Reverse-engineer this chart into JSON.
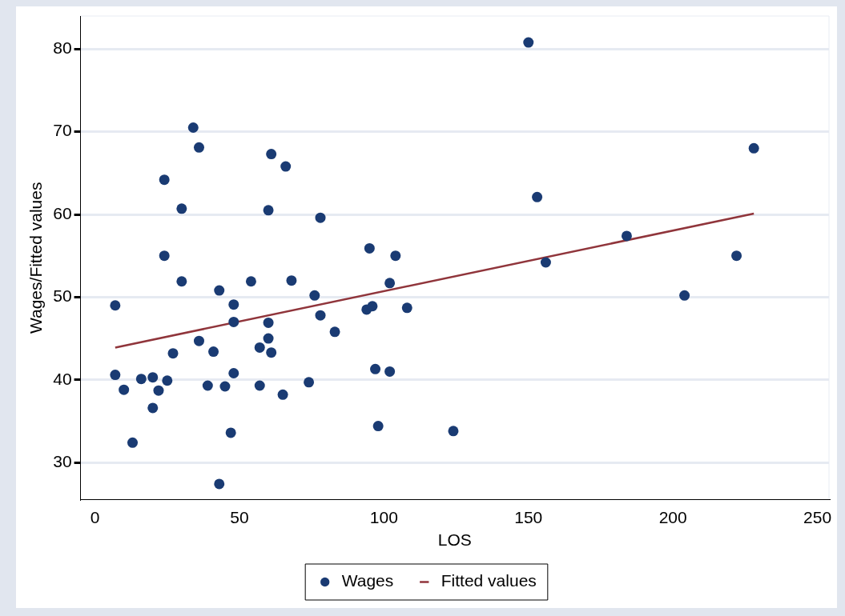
{
  "chart_data": {
    "type": "scatter",
    "xlabel": "LOS",
    "ylabel": "Wages/Fitted values",
    "xlim": [
      -5,
      254
    ],
    "ylim": [
      25.5,
      84
    ],
    "xticks": [
      0,
      50,
      100,
      150,
      200,
      250
    ],
    "yticks": [
      30,
      40,
      50,
      60,
      70,
      80
    ],
    "grid": "y",
    "legend": "bottom",
    "series": [
      {
        "name": "Wages",
        "marker": "circle",
        "color": "#1a3b73",
        "x": [
          7,
          34,
          36,
          24,
          30,
          61,
          66,
          60,
          78,
          24,
          30,
          43,
          54,
          68,
          76,
          48,
          48,
          60,
          78,
          83,
          36,
          60,
          57,
          61,
          41,
          27,
          7,
          16,
          20,
          25,
          48,
          10,
          22,
          39,
          45,
          57,
          74,
          65,
          20,
          47,
          13,
          43,
          95,
          104,
          102,
          94,
          96,
          108,
          97,
          102,
          98,
          124,
          150,
          153,
          156,
          184,
          204,
          222,
          228
        ],
        "values": [
          49.0,
          70.5,
          68.1,
          64.2,
          60.7,
          67.3,
          65.8,
          60.5,
          59.6,
          55.0,
          51.9,
          50.8,
          51.9,
          52.0,
          50.2,
          49.1,
          47.0,
          46.9,
          47.8,
          45.8,
          44.7,
          45.0,
          43.9,
          43.3,
          43.4,
          43.2,
          40.6,
          40.1,
          40.3,
          39.9,
          40.8,
          38.8,
          38.7,
          39.3,
          39.2,
          39.3,
          39.7,
          38.2,
          36.6,
          33.6,
          32.4,
          27.4,
          55.9,
          55.0,
          51.7,
          48.5,
          48.9,
          48.7,
          41.3,
          41.0,
          34.4,
          33.8,
          80.8,
          62.1,
          54.2,
          57.4,
          50.2,
          55.0,
          68.0
        ]
      },
      {
        "name": "Fitted values",
        "type": "line",
        "color": "#90353b",
        "line_style": "solid",
        "marker": "none",
        "x": [
          7,
          228
        ],
        "values": [
          43.9,
          60.1
        ]
      }
    ]
  }
}
